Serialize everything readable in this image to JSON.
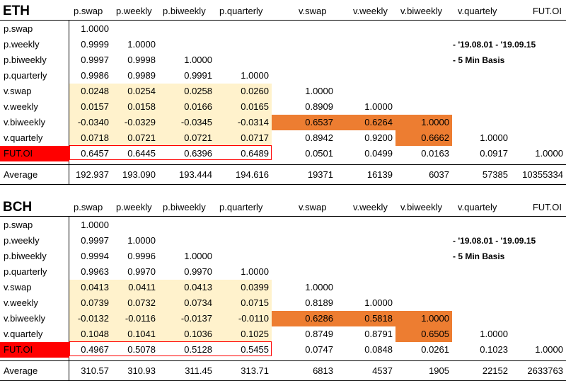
{
  "tables": [
    {
      "title": "ETH",
      "columns": [
        "p.swap",
        "p.weekly",
        "p.biweekly",
        "p.quarterly",
        "v.swap",
        "v.weekly",
        "v.biweekly",
        "v.quartely",
        "FUT.OI"
      ],
      "notes": [
        "- '19.08.01 - '19.09.15",
        "- 5 Min Basis"
      ],
      "rows": [
        {
          "label": "p.swap",
          "values": [
            "1.0000",
            "",
            "",
            "",
            "",
            "",
            "",
            "",
            ""
          ]
        },
        {
          "label": "p.weekly",
          "values": [
            "0.9999",
            "1.0000",
            "",
            "",
            "",
            "",
            "",
            "",
            ""
          ]
        },
        {
          "label": "p.biweekly",
          "values": [
            "0.9997",
            "0.9998",
            "1.0000",
            "",
            "",
            "",
            "",
            "",
            ""
          ]
        },
        {
          "label": "p.quarterly",
          "values": [
            "0.9986",
            "0.9989",
            "0.9991",
            "1.0000",
            "",
            "",
            "",
            "",
            ""
          ]
        },
        {
          "label": "v.swap",
          "values": [
            "0.0248",
            "0.0254",
            "0.0258",
            "0.0260",
            "1.0000",
            "",
            "",
            "",
            ""
          ]
        },
        {
          "label": "v.weekly",
          "values": [
            "0.0157",
            "0.0158",
            "0.0166",
            "0.0165",
            "0.8909",
            "1.0000",
            "",
            "",
            ""
          ]
        },
        {
          "label": "v.biweekly",
          "values": [
            "-0.0340",
            "-0.0329",
            "-0.0345",
            "-0.0314",
            "0.6537",
            "0.6264",
            "1.0000",
            "",
            ""
          ]
        },
        {
          "label": "v.quartely",
          "values": [
            "0.0718",
            "0.0721",
            "0.0721",
            "0.0717",
            "0.8942",
            "0.9200",
            "0.6662",
            "1.0000",
            ""
          ]
        },
        {
          "label": "FUT.OI",
          "values": [
            "0.6457",
            "0.6445",
            "0.6396",
            "0.6489",
            "0.0501",
            "0.0499",
            "0.0163",
            "0.0917",
            "1.0000"
          ]
        },
        {
          "label": "Average",
          "values": [
            "192.937",
            "193.090",
            "193.444",
            "194.616",
            "19371",
            "16139",
            "6037",
            "57385",
            "10355334"
          ]
        }
      ]
    },
    {
      "title": "BCH",
      "columns": [
        "p.swap",
        "p.weekly",
        "p.biweekly",
        "p.quarterly",
        "v.swap",
        "v.weekly",
        "v.biweekly",
        "v.quartely",
        "FUT.OI"
      ],
      "notes": [
        "- '19.08.01 - '19.09.15",
        "- 5 Min Basis"
      ],
      "rows": [
        {
          "label": "p.swap",
          "values": [
            "1.0000",
            "",
            "",
            "",
            "",
            "",
            "",
            "",
            ""
          ]
        },
        {
          "label": "p.weekly",
          "values": [
            "0.9997",
            "1.0000",
            "",
            "",
            "",
            "",
            "",
            "",
            ""
          ]
        },
        {
          "label": "p.biweekly",
          "values": [
            "0.9994",
            "0.9996",
            "1.0000",
            "",
            "",
            "",
            "",
            "",
            ""
          ]
        },
        {
          "label": "p.quarterly",
          "values": [
            "0.9963",
            "0.9970",
            "0.9970",
            "1.0000",
            "",
            "",
            "",
            "",
            ""
          ]
        },
        {
          "label": "v.swap",
          "values": [
            "0.0413",
            "0.0411",
            "0.0413",
            "0.0399",
            "1.0000",
            "",
            "",
            "",
            ""
          ]
        },
        {
          "label": "v.weekly",
          "values": [
            "0.0739",
            "0.0732",
            "0.0734",
            "0.0715",
            "0.8189",
            "1.0000",
            "",
            "",
            ""
          ]
        },
        {
          "label": "v.biweekly",
          "values": [
            "-0.0132",
            "-0.0116",
            "-0.0137",
            "-0.0110",
            "0.6286",
            "0.5818",
            "1.0000",
            "",
            ""
          ]
        },
        {
          "label": "v.quartely",
          "values": [
            "0.1048",
            "0.1041",
            "0.1036",
            "0.1025",
            "0.8749",
            "0.8791",
            "0.6505",
            "1.0000",
            ""
          ]
        },
        {
          "label": "FUT.OI",
          "values": [
            "0.4967",
            "0.5078",
            "0.5128",
            "0.5455",
            "0.0747",
            "0.0848",
            "0.0261",
            "0.1023",
            "1.0000"
          ]
        },
        {
          "label": "Average",
          "values": [
            "310.57",
            "310.93",
            "311.45",
            "313.71",
            "6813",
            "4537",
            "1905",
            "22152",
            "2633763"
          ]
        }
      ]
    }
  ],
  "colors": {
    "light_highlight": "#fff2cc",
    "orange_highlight": "#ed7d31",
    "red_highlight": "#ff0000"
  }
}
